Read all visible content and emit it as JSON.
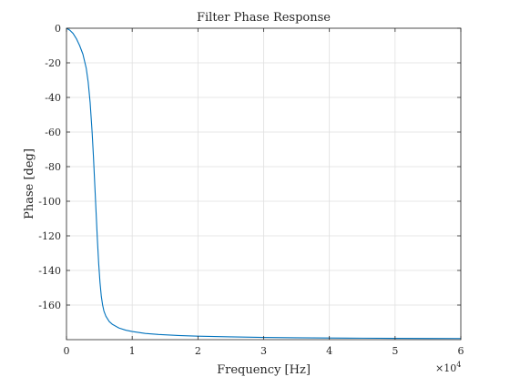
{
  "chart_data": {
    "type": "line",
    "title": "Filter Phase Response",
    "xlabel": "Frequency [Hz]",
    "ylabel": "Phase [deg]",
    "x_exponent_label": "×10",
    "x_exponent_power": "4",
    "xlim": [
      0,
      60000
    ],
    "ylim": [
      -180,
      0
    ],
    "grid": true,
    "x_ticks": [
      0,
      10000,
      20000,
      30000,
      40000,
      50000,
      60000
    ],
    "x_tick_labels": [
      "0",
      "1",
      "2",
      "3",
      "4",
      "5",
      "6"
    ],
    "y_ticks": [
      0,
      -20,
      -40,
      -60,
      -80,
      -100,
      -120,
      -140,
      -160
    ],
    "y_tick_labels": [
      "0",
      "-20",
      "-40",
      "-60",
      "-80",
      "-100",
      "-120",
      "-140",
      "-160"
    ],
    "series": [
      {
        "color": "#0072BD",
        "x": [
          0,
          500,
          1000,
          1500,
          2000,
          2500,
          3000,
          3300,
          3600,
          3900,
          4100,
          4300,
          4500,
          4700,
          4900,
          5100,
          5300,
          5500,
          5700,
          6000,
          6500,
          7000,
          8000,
          9000,
          10000,
          12000,
          14000,
          17000,
          20000,
          25000,
          30000,
          35000,
          40000,
          45000,
          50000,
          55000,
          60000
        ],
        "y": [
          0,
          -1.1,
          -3,
          -6,
          -10,
          -15,
          -23,
          -31,
          -43,
          -60,
          -74,
          -90,
          -106,
          -122,
          -136,
          -147,
          -155,
          -160,
          -163.5,
          -166.5,
          -169.5,
          -171.2,
          -173.3,
          -174.5,
          -175.3,
          -176.4,
          -177.0,
          -177.6,
          -178.0,
          -178.4,
          -178.7,
          -178.9,
          -179.05,
          -179.15,
          -179.25,
          -179.3,
          -179.35
        ]
      }
    ]
  }
}
